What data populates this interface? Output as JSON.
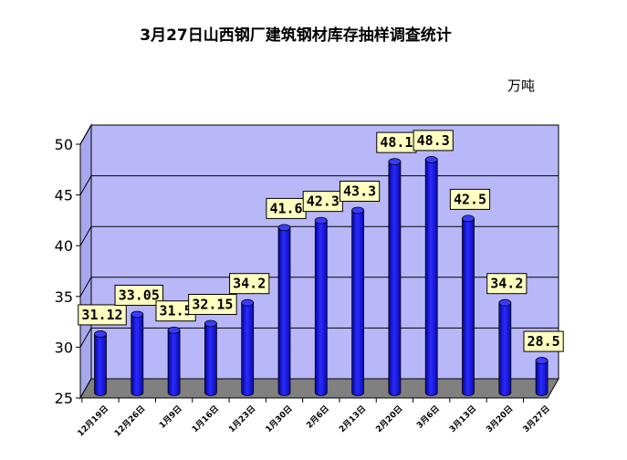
{
  "chart_data": {
    "type": "bar",
    "title": "3月27日山西钢厂建筑钢材库存抽样调查统计",
    "unit": "万吨",
    "categories": [
      "12月19日",
      "12月26日",
      "1月9日",
      "1月16日",
      "1月23日",
      "1月30日",
      "2月6日",
      "2月13日",
      "2月20日",
      "3月6日",
      "3月13日",
      "3月20日",
      "3月27日"
    ],
    "values": [
      31.12,
      33.05,
      31.5,
      32.15,
      34.2,
      41.6,
      42.3,
      43.3,
      48.1,
      48.3,
      42.5,
      34.2,
      28.5
    ],
    "value_labels": [
      "31.12",
      "33.05",
      "31.5",
      "32.15",
      "34.2",
      "41.6",
      "42.3",
      "43.3",
      "48.1",
      "48.3",
      "42.5",
      "34.2",
      "28.5"
    ],
    "ylim": [
      25,
      50
    ],
    "yticks": [
      "25",
      "30",
      "35",
      "40",
      "45",
      "50"
    ],
    "grid": true,
    "colors": {
      "bar": "#1010e0",
      "wall": "#b8b8f8",
      "floor": "#808080",
      "label_bg": "#ffffc0"
    }
  }
}
